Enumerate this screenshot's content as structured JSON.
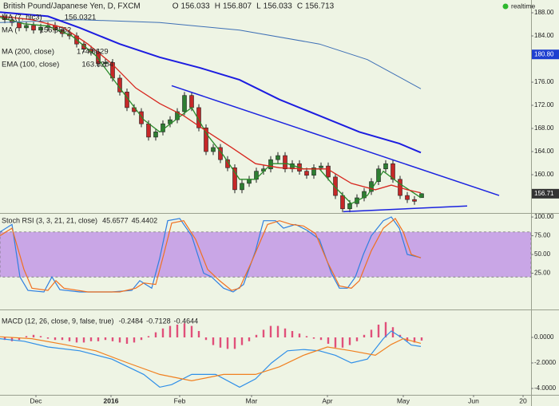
{
  "chart_data": [
    {
      "type": "candlestick",
      "title": "British Pound/Japanese Yen, D, FXCM",
      "status": "realtime",
      "quote": [
        {
          "label": "O",
          "value": 156.033
        },
        {
          "label": "H",
          "value": 156.807
        },
        {
          "label": "L",
          "value": 156.033
        },
        {
          "label": "C",
          "value": 156.713
        }
      ],
      "xlim": [
        0,
        665
      ],
      "ylim": [
        153.38,
        190.21
      ],
      "grid": false,
      "yticks": [
        {
          "value": 160,
          "label": "160.00"
        },
        {
          "value": 164,
          "label": "164.00"
        },
        {
          "value": 168,
          "label": "168.00"
        },
        {
          "value": 172,
          "label": "172.00"
        },
        {
          "value": 176,
          "label": "176.00"
        },
        {
          "value": 184,
          "label": "184.00"
        },
        {
          "value": 188,
          "label": "188.00"
        }
      ],
      "up_color": "#2e7d32",
      "down_color": "#c62828",
      "x": [
        6,
        15,
        24,
        33,
        42,
        51,
        60,
        69,
        78,
        87,
        96,
        105,
        114,
        123,
        132,
        141,
        150,
        159,
        168,
        177,
        186,
        195,
        204,
        213,
        222,
        231,
        240,
        249,
        258,
        267,
        276,
        285,
        294,
        303,
        312,
        321,
        330,
        339,
        348,
        357,
        366,
        375,
        384,
        393,
        402,
        411,
        420,
        429,
        438,
        447,
        456,
        465,
        474,
        483,
        492,
        501,
        510,
        519,
        528
      ],
      "open": [
        187.3,
        186.8,
        186.3,
        185.4,
        185.8,
        185.0,
        185.5,
        185.8,
        185.0,
        184.4,
        184.0,
        182.6,
        181.7,
        181.2,
        179.2,
        179.4,
        176.7,
        174.3,
        171.6,
        170.9,
        168.8,
        166.5,
        167.4,
        168.8,
        169.5,
        170.9,
        173.7,
        171.6,
        168.1,
        164.0,
        164.7,
        162.6,
        161.2,
        157.4,
        158.5,
        159.2,
        160.6,
        161.0,
        162.6,
        163.3,
        161.0,
        161.9,
        160.6,
        159.9,
        161.2,
        161.5,
        159.6,
        156.4,
        154.1,
        155.0,
        156.0,
        157.1,
        158.8,
        161.0,
        161.9,
        159.2,
        156.4,
        155.7,
        156.033
      ],
      "high": [
        187.9,
        187.4,
        186.9,
        186.4,
        186.4,
        186.1,
        186.4,
        186.4,
        185.6,
        185.0,
        184.6,
        183.2,
        182.3,
        181.8,
        180.0,
        180.0,
        177.3,
        174.9,
        172.2,
        171.5,
        169.4,
        168.0,
        169.4,
        170.1,
        171.5,
        174.3,
        174.3,
        172.2,
        168.7,
        165.3,
        165.3,
        163.2,
        161.8,
        159.1,
        159.8,
        161.2,
        161.6,
        163.2,
        163.9,
        163.9,
        162.5,
        162.5,
        161.2,
        161.8,
        162.1,
        162.1,
        160.2,
        157.0,
        155.6,
        156.6,
        157.7,
        159.4,
        161.6,
        162.5,
        162.5,
        159.8,
        157.0,
        156.3,
        156.807
      ],
      "low": [
        186.2,
        185.7,
        184.8,
        184.8,
        184.4,
        184.4,
        184.9,
        184.4,
        183.8,
        183.4,
        182.0,
        181.1,
        180.6,
        178.6,
        178.6,
        176.1,
        173.7,
        171.0,
        170.3,
        168.2,
        165.9,
        165.9,
        166.8,
        168.2,
        168.9,
        170.3,
        171.0,
        167.5,
        163.4,
        163.4,
        162.0,
        160.6,
        156.8,
        156.8,
        157.9,
        158.6,
        160.0,
        160.4,
        162.0,
        160.4,
        160.4,
        160.0,
        159.3,
        159.3,
        160.6,
        159.0,
        155.8,
        153.5,
        153.5,
        154.4,
        155.4,
        156.5,
        158.2,
        160.4,
        158.6,
        155.8,
        155.1,
        154.8,
        156.033
      ],
      "close": [
        186.8,
        186.3,
        185.4,
        185.8,
        185.0,
        185.5,
        185.8,
        185.0,
        184.4,
        184.0,
        182.6,
        181.7,
        181.2,
        179.2,
        179.4,
        176.7,
        174.3,
        171.6,
        170.9,
        168.8,
        166.5,
        167.4,
        168.8,
        169.5,
        170.9,
        173.7,
        171.6,
        168.1,
        164.0,
        164.7,
        162.6,
        161.2,
        157.4,
        158.5,
        159.2,
        160.6,
        161.0,
        162.6,
        163.3,
        161.0,
        161.9,
        160.6,
        159.9,
        161.2,
        161.5,
        159.6,
        156.4,
        154.1,
        155.0,
        156.0,
        157.1,
        158.8,
        161.0,
        161.9,
        159.2,
        156.4,
        155.7,
        155.4,
        156.713
      ],
      "series": [
        {
          "name": "MA (7, hlc3)",
          "color": "#2a8a2a",
          "width": 1.3,
          "legend_value": 156.0321,
          "x": [
            0,
            30,
            60,
            90,
            120,
            150,
            180,
            200,
            220,
            240,
            260,
            280,
            300,
            320,
            340,
            360,
            380,
            400,
            420,
            440,
            460,
            480,
            500,
            527
          ],
          "values": [
            187.2,
            186.1,
            185.7,
            184.0,
            180.6,
            175.0,
            169.5,
            167.4,
            169.5,
            171.6,
            166.8,
            163.3,
            159.2,
            159.2,
            161.9,
            161.9,
            161.0,
            161.0,
            157.8,
            155.0,
            156.4,
            160.6,
            158.5,
            156.0321
          ]
        },
        {
          "name": "MA (",
          "color": "#d7261e",
          "width": 1.3,
          "legend_value": 156.8562,
          "x": [
            0,
            40,
            80,
            110,
            140,
            170,
            200,
            230,
            260,
            290,
            320,
            350,
            380,
            410,
            440,
            470,
            490,
            510,
            527
          ],
          "values": [
            187.4,
            186.8,
            185.4,
            182.6,
            179.2,
            175.0,
            172.3,
            170.2,
            167.4,
            164.7,
            161.9,
            161.2,
            161.0,
            161.0,
            158.5,
            157.4,
            158.2,
            157.4,
            156.8562
          ]
        },
        {
          "name": "MA (200, close)",
          "color": "#3d6fb5",
          "width": 1,
          "legend_value": 174.8629,
          "x": [
            0,
            100,
            200,
            300,
            400,
            460,
            527
          ],
          "values": [
            186.3,
            186.8,
            186.3,
            185.0,
            182.6,
            179.9,
            174.8629
          ]
        },
        {
          "name": "EMA (100, close)",
          "color": "#1c1ce0",
          "width": 2,
          "legend_value": 163.8204,
          "x": [
            0,
            60,
            100,
            150,
            200,
            250,
            300,
            350,
            400,
            450,
            500,
            527
          ],
          "values": [
            188.1,
            187.4,
            185.4,
            182.6,
            180.3,
            178.5,
            176.4,
            173.0,
            170.2,
            167.4,
            165.4,
            163.8204
          ]
        }
      ],
      "trend_color": "#1a22e0",
      "trendlines": [
        {
          "x": [
            215,
            625
          ],
          "values": [
            175.4,
            156.4
          ]
        },
        {
          "x": [
            430,
            585
          ],
          "values": [
            153.6,
            154.6
          ]
        }
      ],
      "markers": [
        {
          "value": 180.8,
          "label": "180.80",
          "color": "#1e3fd0"
        },
        {
          "value": 156.713,
          "label": "156.71",
          "color": "#333333"
        }
      ]
    },
    {
      "type": "line",
      "title": "Stoch RSI (3, 3, 21, 21, close)",
      "xlim": [
        0,
        665
      ],
      "ylim": [
        -23.4,
        104.3
      ],
      "yticks": [
        {
          "value": 25,
          "label": "25.00"
        },
        {
          "value": 50,
          "label": "50.00"
        },
        {
          "value": 75,
          "label": "75.00"
        },
        {
          "value": 100,
          "label": "100.00"
        }
      ],
      "band": [
        20,
        80
      ],
      "band_color": "#c9a6e6",
      "series": [
        {
          "color": "#2f7fe0",
          "width": 1.2,
          "legend_value": 45.6577,
          "x": [
            0,
            15,
            25,
            35,
            55,
            65,
            75,
            100,
            140,
            165,
            175,
            190,
            200,
            210,
            225,
            240,
            255,
            265,
            280,
            292,
            305,
            320,
            330,
            345,
            355,
            370,
            385,
            400,
            415,
            425,
            435,
            445,
            455,
            465,
            480,
            490,
            500,
            510,
            527
          ],
          "values": [
            80,
            90,
            20,
            2,
            0,
            20,
            3,
            0,
            0,
            2,
            15,
            5,
            45,
            95,
            98,
            75,
            25,
            20,
            5,
            0,
            10,
            55,
            95,
            95,
            85,
            90,
            82,
            70,
            25,
            5,
            5,
            20,
            50,
            75,
            95,
            100,
            85,
            50,
            45.6577
          ]
        },
        {
          "color": "#f07020",
          "width": 1.2,
          "legend_value": 45.4402,
          "x": [
            0,
            15,
            30,
            40,
            60,
            70,
            80,
            110,
            150,
            170,
            180,
            195,
            205,
            215,
            230,
            245,
            260,
            275,
            290,
            300,
            315,
            335,
            350,
            365,
            380,
            395,
            410,
            425,
            440,
            450,
            465,
            480,
            495,
            505,
            515,
            527
          ],
          "values": [
            75,
            85,
            30,
            5,
            2,
            15,
            5,
            0,
            0,
            5,
            12,
            10,
            50,
            92,
            95,
            70,
            30,
            15,
            2,
            5,
            40,
            90,
            95,
            90,
            88,
            78,
            40,
            8,
            5,
            15,
            55,
            85,
            98,
            80,
            50,
            45.4402
          ]
        }
      ]
    },
    {
      "type": "bar",
      "title": "MACD (12, 26, close, 9, false, true)",
      "xlim": [
        0,
        665
      ],
      "ylim": [
        -4.5,
        2.125
      ],
      "yticks": [
        {
          "value": 0,
          "label": "0.0000"
        },
        {
          "value": -2,
          "label": "-2.0000"
        },
        {
          "value": -4,
          "label": "-4.0000"
        }
      ],
      "xticks": [
        {
          "value": 45,
          "label": "Dec"
        },
        {
          "value": 139,
          "label": "2016"
        },
        {
          "value": 225,
          "label": "Feb"
        },
        {
          "value": 315,
          "label": "Mar"
        },
        {
          "value": 410,
          "label": "Apr"
        },
        {
          "value": 505,
          "label": "May"
        },
        {
          "value": 593,
          "label": "Jun"
        },
        {
          "value": 655,
          "label": "20"
        }
      ],
      "color": "#e0507a",
      "legend_value": -0.2484,
      "x": [
        6,
        15,
        24,
        33,
        42,
        51,
        60,
        69,
        78,
        87,
        96,
        105,
        114,
        123,
        132,
        141,
        150,
        159,
        168,
        177,
        186,
        195,
        204,
        213,
        222,
        231,
        240,
        249,
        258,
        267,
        276,
        285,
        294,
        303,
        312,
        321,
        330,
        339,
        348,
        357,
        366,
        375,
        384,
        393,
        402,
        411,
        420,
        429,
        438,
        447,
        456,
        465,
        474,
        483,
        492,
        501,
        510,
        519,
        528
      ],
      "values": [
        -0.2,
        -0.3,
        -0.2,
        0.1,
        0.2,
        0.1,
        -0.1,
        -0.2,
        -0.2,
        -0.3,
        -0.4,
        -0.4,
        -0.3,
        -0.3,
        -0.2,
        -0.3,
        -0.4,
        -0.5,
        -0.4,
        -0.2,
        0.1,
        0.4,
        0.7,
        0.9,
        1.0,
        1.1,
        0.9,
        0.5,
        -0.2,
        -0.6,
        -0.8,
        -0.9,
        -0.9,
        -0.6,
        -0.3,
        0.2,
        0.6,
        0.9,
        0.9,
        0.7,
        0.5,
        0.3,
        0.1,
        -0.1,
        -0.2,
        -0.5,
        -0.8,
        -0.8,
        -0.6,
        -0.3,
        0.2,
        0.6,
        1.0,
        1.2,
        0.8,
        0.2,
        -0.3,
        -0.4,
        -0.2484
      ],
      "series": [
        {
          "color": "#2f8fe8",
          "width": 1.2,
          "legend_value": -0.7128,
          "x": [
            0,
            30,
            60,
            100,
            140,
            180,
            200,
            215,
            240,
            270,
            300,
            320,
            340,
            360,
            380,
            400,
            420,
            440,
            460,
            480,
            490,
            505,
            515,
            527
          ],
          "values": [
            -0.1,
            -0.3,
            -0.75,
            -1.05,
            -1.7,
            -2.9,
            -3.9,
            -3.7,
            -2.9,
            -2.9,
            -3.9,
            -3.25,
            -2.0,
            -1.05,
            -0.95,
            -1.05,
            -1.4,
            -2.0,
            -1.7,
            -0.1,
            0.5,
            -0.1,
            -0.6,
            -0.7128
          ]
        },
        {
          "color": "#f08020",
          "width": 1.2,
          "legend_value": -0.4644,
          "x": [
            0,
            40,
            80,
            120,
            160,
            200,
            240,
            280,
            320,
            350,
            380,
            410,
            440,
            470,
            490,
            505,
            527
          ],
          "values": [
            0.05,
            -0.1,
            -0.55,
            -1.05,
            -2.0,
            -2.9,
            -3.4,
            -2.9,
            -2.9,
            -2.3,
            -1.4,
            -0.75,
            -1.05,
            -1.4,
            -0.55,
            -0.1,
            -0.4644
          ]
        }
      ]
    }
  ]
}
